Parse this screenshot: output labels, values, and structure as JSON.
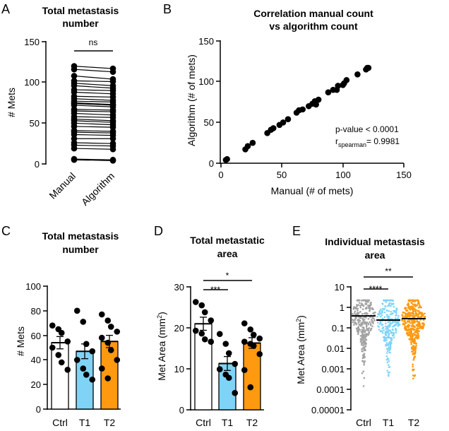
{
  "panels": [
    "A",
    "B",
    "C",
    "D",
    "E"
  ],
  "chart_data": [
    {
      "id": "A",
      "type": "paired-scatter",
      "title": "Total metastasis number",
      "title_lines": [
        "Total metastasis",
        "number"
      ],
      "ylabel": "# Mets",
      "categories": [
        "Manual",
        "Algorithm"
      ],
      "yticks": [
        "0",
        "50",
        "100",
        "150"
      ],
      "ylim": [
        0,
        150
      ],
      "significance": "ns",
      "pairs": [
        [
          120,
          117
        ],
        [
          116,
          113
        ],
        [
          108,
          104
        ],
        [
          102,
          101
        ],
        [
          99,
          96
        ],
        [
          96,
          93
        ],
        [
          91,
          90
        ],
        [
          88,
          86
        ],
        [
          83,
          82
        ],
        [
          80,
          78
        ],
        [
          77,
          76
        ],
        [
          75,
          73
        ],
        [
          74,
          72
        ],
        [
          72,
          70
        ],
        [
          67,
          66
        ],
        [
          65,
          64
        ],
        [
          62,
          60
        ],
        [
          58,
          57
        ],
        [
          55,
          53
        ],
        [
          53,
          51
        ],
        [
          50,
          48
        ],
        [
          46,
          45
        ],
        [
          41,
          40
        ],
        [
          39,
          38
        ],
        [
          36,
          35
        ],
        [
          31,
          31
        ],
        [
          26,
          25
        ],
        [
          23,
          22
        ],
        [
          19,
          18
        ],
        [
          6,
          5
        ],
        [
          5,
          4
        ]
      ]
    },
    {
      "id": "B",
      "type": "scatter",
      "title": "Correlation manual count vs algorithm count",
      "title_lines": [
        "Correlation manual count",
        "vs algorithm count"
      ],
      "xlabel": "Manual (# of mets)",
      "ylabel": "Algorithm (# of mets)",
      "xticks": [
        "0",
        "50",
        "100",
        "150"
      ],
      "yticks": [
        "0",
        "50",
        "100",
        "150"
      ],
      "xlim": [
        0,
        150
      ],
      "ylim": [
        0,
        150
      ],
      "annotation_p": "p-value < 0.0001",
      "annotation_r_main": "r",
      "annotation_r_sub": "spearman",
      "annotation_r_value": "= 0.9981",
      "x": [
        4,
        5,
        20,
        22,
        26,
        38,
        41,
        43,
        48,
        51,
        55,
        62,
        64,
        67,
        72,
        75,
        77,
        78,
        80,
        88,
        92,
        95,
        96,
        100,
        101,
        103,
        112,
        119,
        120,
        121
      ],
      "y": [
        4,
        5,
        17,
        21,
        25,
        37,
        41,
        43,
        47,
        50,
        54,
        62,
        65,
        66,
        70,
        73,
        76,
        72,
        78,
        87,
        90,
        90,
        95,
        96,
        98,
        102,
        109,
        115,
        117,
        117
      ]
    },
    {
      "id": "C",
      "type": "bar",
      "title": "Total metastasis number",
      "title_lines": [
        "Total metastasis",
        "number"
      ],
      "ylabel": "# Mets",
      "categories": [
        "Ctrl",
        "T1",
        "T2"
      ],
      "colors": [
        "#ffffff",
        "#7fd3f7",
        "#ff9910"
      ],
      "values": [
        54,
        47,
        55
      ],
      "sem": [
        5,
        6,
        5
      ],
      "yticks": [
        "0",
        "20",
        "40",
        "60",
        "80",
        "100"
      ],
      "ylim": [
        0,
        100
      ],
      "points": [
        [
          68,
          65,
          62,
          55,
          50,
          44,
          38,
          32
        ],
        [
          80,
          71,
          53,
          47,
          40,
          33,
          28,
          24
        ],
        [
          77,
          72,
          67,
          63,
          58,
          54,
          48,
          40,
          33,
          25
        ]
      ]
    },
    {
      "id": "D",
      "type": "bar",
      "title": "Total metastatic area",
      "title_lines": [
        "Total metastatic",
        "area"
      ],
      "ylabel_main": "Met Area (mm",
      "ylabel_sup": "2",
      "ylabel_end": ")",
      "categories": [
        "Ctrl",
        "T1",
        "T2"
      ],
      "colors": [
        "#ffffff",
        "#7fd3f7",
        "#ff9910"
      ],
      "values": [
        21,
        11.3,
        16.3
      ],
      "sem": [
        1.6,
        1.7,
        1.3
      ],
      "yticks": [
        "0",
        "10",
        "20",
        "30"
      ],
      "ylim": [
        0,
        30
      ],
      "points": [
        [
          26.3,
          25.5,
          23.8,
          21.8,
          19.3,
          18.6,
          17.2,
          16.6
        ],
        [
          18.5,
          16.1,
          13.8,
          11.2,
          9.9,
          8.6,
          7.8,
          4.1
        ],
        [
          21.1,
          19.6,
          18.3,
          17.4,
          16.6,
          16.1,
          15.6,
          13.6,
          9.7,
          5.5
        ]
      ],
      "significance": [
        {
          "label": "***",
          "from": 0,
          "to": 1
        },
        {
          "label": "*",
          "from": 0,
          "to": 2
        }
      ]
    },
    {
      "id": "E",
      "type": "beeswarm",
      "title": "Individual metastasis area",
      "title_lines": [
        "Individual metastasis",
        "area"
      ],
      "ylabel_main": "Met Area (mm",
      "ylabel_sup": "2",
      "ylabel_end": ")",
      "categories": [
        "Ctrl",
        "T1",
        "T2"
      ],
      "colors": [
        "#a3a3a3",
        "#7fd3f7",
        "#ff9910"
      ],
      "yscale": "log",
      "yticks": [
        "10",
        "1",
        "0.1",
        "0.01",
        "0.001",
        "0.0001",
        "0.00001"
      ],
      "ylim": [
        1e-05,
        10
      ],
      "medians": [
        0.38,
        0.24,
        0.28
      ],
      "significance": [
        {
          "label": "****",
          "from": 0,
          "to": 1
        },
        {
          "label": "**",
          "from": 0,
          "to": 2
        }
      ]
    }
  ]
}
